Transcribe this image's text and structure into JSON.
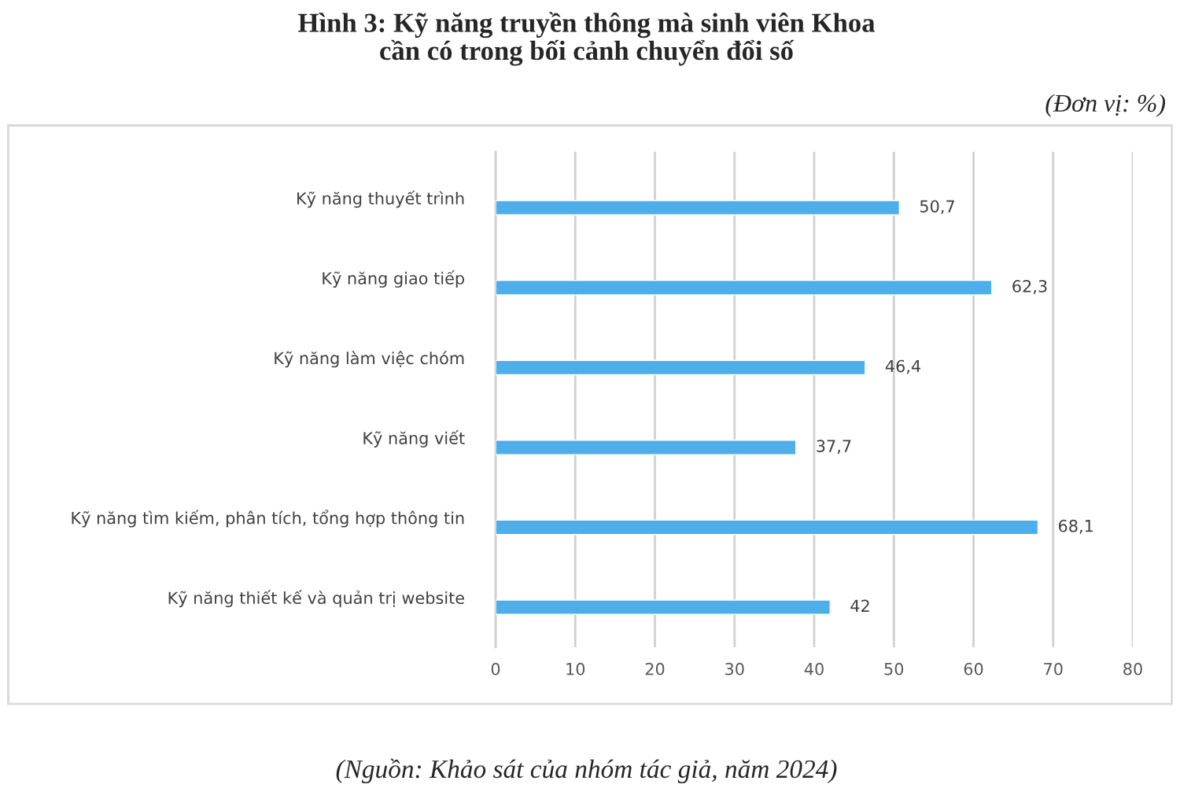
{
  "chart_data": {
    "type": "bar",
    "orientation": "horizontal",
    "title": "Hình 3: Kỹ năng truyền thông mà sinh viên Khoa\ncần có trong bối cảnh chuyển đổi số",
    "categories": [
      "Kỹ năng thuyết trình",
      "Kỹ năng giao tiếp",
      "Kỹ năng làm việc chóm",
      "Kỹ năng viết",
      "Kỹ năng tìm kiếm, phân tích, tổng hợp thông tin",
      "Kỹ năng thiết kế và quản trị website"
    ],
    "values": [
      50.7,
      62.3,
      46.4,
      37.7,
      68.1,
      42
    ],
    "value_labels": [
      "50,7",
      "62,3",
      "46,4",
      "37,7",
      "68,1",
      "42"
    ],
    "color": "#4eaeea",
    "xlim": [
      0,
      80
    ],
    "xticks": [
      0,
      10,
      20,
      30,
      40,
      50,
      60,
      70,
      80
    ],
    "grid": "x",
    "legend": false,
    "annotations": [
      "(Đơn vị: %)",
      "(Nguồn: Khảo sát của nhóm tác giả, năm 2024)"
    ]
  }
}
